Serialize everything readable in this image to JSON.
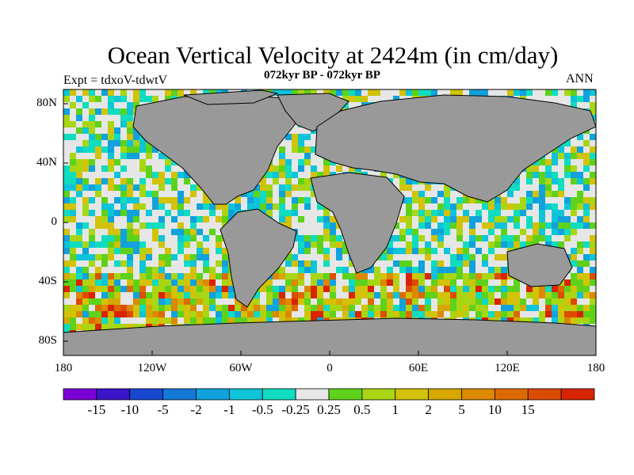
{
  "title": "Ocean Vertical Velocity at 2424m (in cm/day)",
  "subtitle": "072kyr BP - 072kyr BP",
  "left_label": "Expt = tdxoV-tdwtV",
  "right_label": "ANN",
  "map": {
    "projection": "cylindrical equidistant",
    "lon_range": [
      -180,
      180
    ],
    "lat_range": [
      -90,
      90
    ],
    "y_ticks": [
      "80N",
      "40N",
      "0",
      "40S",
      "80S"
    ],
    "x_ticks": [
      "180",
      "120W",
      "60W",
      "0",
      "60E",
      "120E",
      "180"
    ],
    "land_color": "#999999",
    "near_zero_color": "#e6e6e6"
  },
  "colorbar": {
    "colors": [
      "#7a00d6",
      "#3a14c8",
      "#1848d0",
      "#1478d8",
      "#10a2dc",
      "#0ec4d8",
      "#10dcc0",
      "#e6e6e6",
      "#5ed21a",
      "#a8d614",
      "#d2c208",
      "#d6a800",
      "#dc8800",
      "#dc6a00",
      "#dc4c00",
      "#d82400"
    ],
    "labels": [
      "-15",
      "-10",
      "-5",
      "-2",
      "-1",
      "-0.5",
      "-0.25",
      "0.25",
      "0.5",
      "1",
      "2",
      "5",
      "10",
      "15"
    ]
  }
}
